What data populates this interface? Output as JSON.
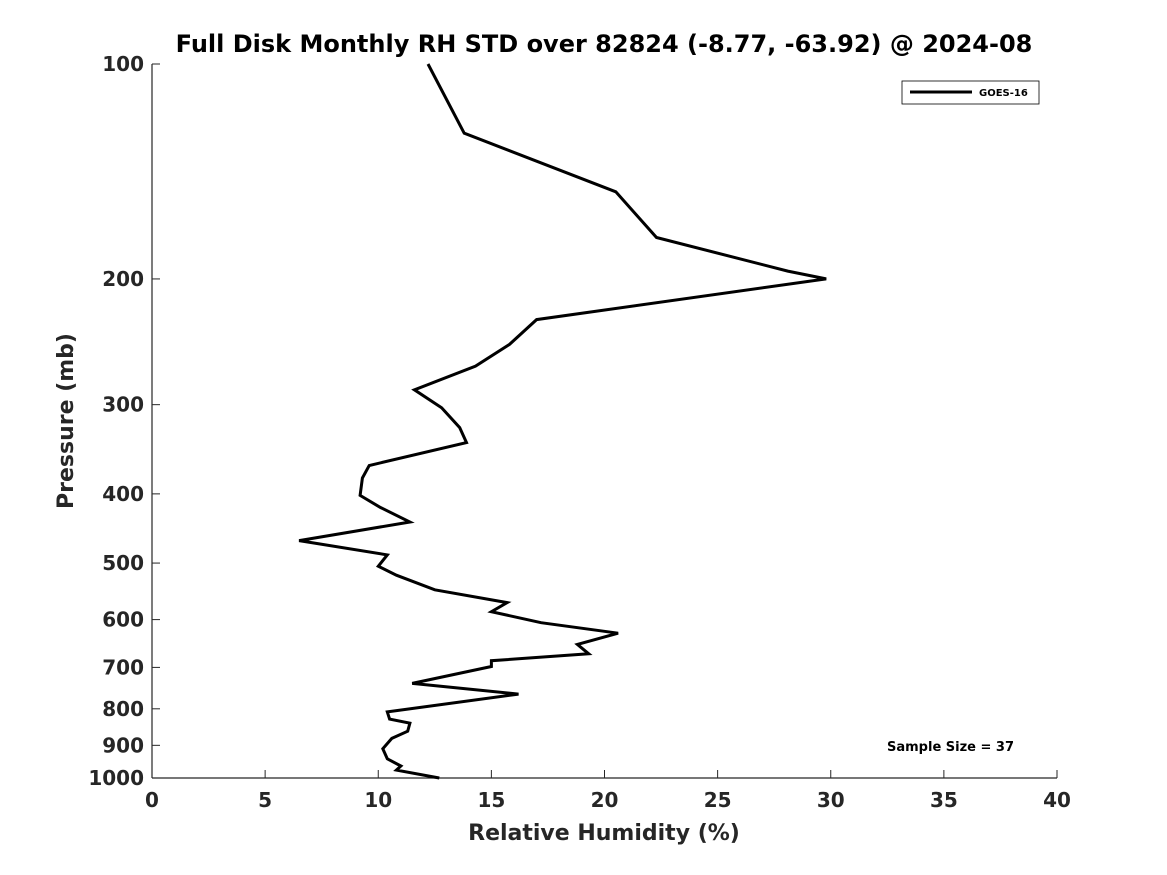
{
  "chart_data": {
    "type": "line",
    "title": "Full Disk Monthly RH STD over 82824 (-8.77, -63.92) @ 2024-08",
    "xlabel": "Relative Humidity (%)",
    "ylabel": "Pressure (mb)",
    "xlim": [
      0,
      40
    ],
    "ylim": [
      100,
      1000
    ],
    "yscale": "log",
    "y_reversed": true,
    "xticks": [
      0,
      5,
      10,
      15,
      20,
      25,
      30,
      35,
      40
    ],
    "yticks": [
      100,
      200,
      300,
      400,
      500,
      600,
      700,
      800,
      900,
      1000
    ],
    "legend_position": "top-right",
    "grid": false,
    "series": [
      {
        "name": "GOES-16",
        "color": "#000000",
        "points": [
          [
            12.2,
            100
          ],
          [
            13.8,
            125
          ],
          [
            20.5,
            151
          ],
          [
            22.3,
            175
          ],
          [
            28.1,
            195
          ],
          [
            29.8,
            200
          ],
          [
            17.0,
            228
          ],
          [
            15.8,
            247
          ],
          [
            14.3,
            265
          ],
          [
            11.6,
            286
          ],
          [
            12.8,
            303
          ],
          [
            13.6,
            323
          ],
          [
            13.9,
            339
          ],
          [
            9.6,
            365
          ],
          [
            9.3,
            380
          ],
          [
            9.2,
            402
          ],
          [
            10.1,
            418
          ],
          [
            11.4,
            438
          ],
          [
            6.5,
            465
          ],
          [
            10.4,
            487
          ],
          [
            10.0,
            505
          ],
          [
            10.8,
            520
          ],
          [
            12.5,
            545
          ],
          [
            15.7,
            568
          ],
          [
            15.0,
            585
          ],
          [
            17.2,
            606
          ],
          [
            20.6,
            627
          ],
          [
            18.8,
            650
          ],
          [
            19.3,
            670
          ],
          [
            15.0,
            685
          ],
          [
            15.0,
            698
          ],
          [
            11.5,
            737
          ],
          [
            16.2,
            763
          ],
          [
            10.4,
            808
          ],
          [
            10.5,
            827
          ],
          [
            11.4,
            838
          ],
          [
            11.3,
            860
          ],
          [
            10.6,
            880
          ],
          [
            10.2,
            910
          ],
          [
            10.4,
            940
          ],
          [
            11.0,
            962
          ],
          [
            10.8,
            975
          ],
          [
            12.7,
            1000
          ]
        ]
      }
    ],
    "annotation": "Sample Size = 37"
  }
}
